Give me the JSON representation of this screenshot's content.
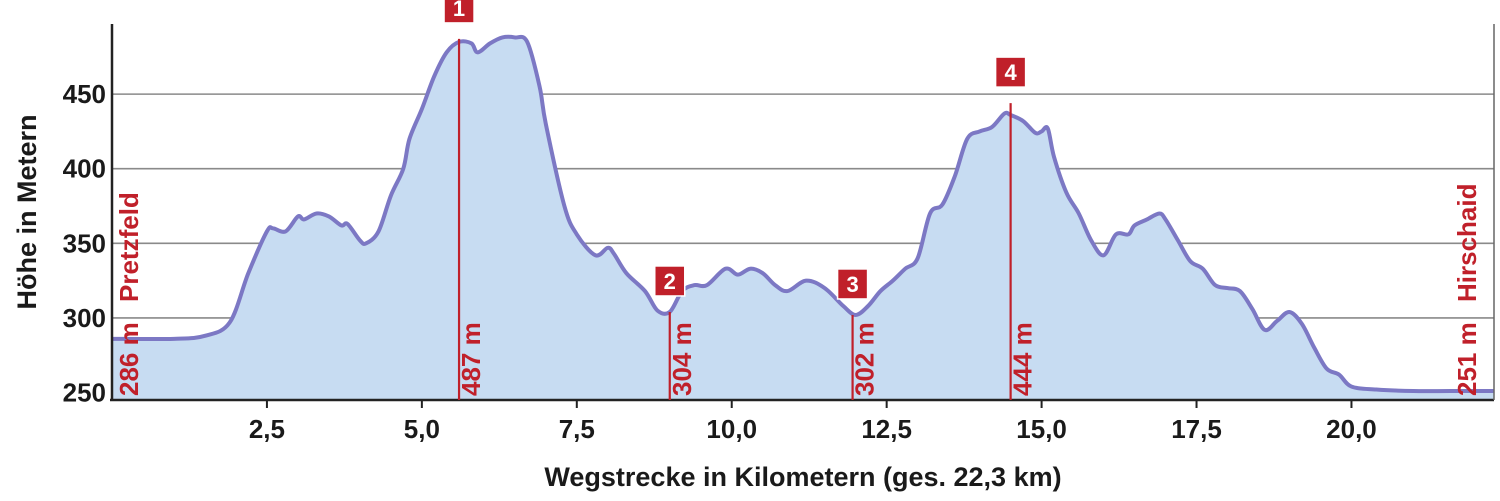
{
  "chart_data": {
    "type": "area",
    "xlabel": "Wegstrecke in Kilometern (ges. 22,3 km)",
    "ylabel": "Höhe in Metern",
    "xlim": [
      0,
      22.3
    ],
    "ylim": [
      245,
      497
    ],
    "x_ticks": [
      {
        "value": 2.5,
        "label": "2,5"
      },
      {
        "value": 5.0,
        "label": "5,0"
      },
      {
        "value": 7.5,
        "label": "7,5"
      },
      {
        "value": 10.0,
        "label": "10,0"
      },
      {
        "value": 12.5,
        "label": "12,5"
      },
      {
        "value": 15.0,
        "label": "15,0"
      },
      {
        "value": 17.5,
        "label": "17,5"
      },
      {
        "value": 20.0,
        "label": "20,0"
      }
    ],
    "y_ticks": [
      {
        "value": 250,
        "label": "250"
      },
      {
        "value": 300,
        "label": "300"
      },
      {
        "value": 350,
        "label": "350"
      },
      {
        "value": 400,
        "label": "400"
      },
      {
        "value": 450,
        "label": "450"
      }
    ],
    "grid": true,
    "colors": {
      "fill": "#c7dcf2",
      "line": "#7c78c4",
      "marker": "#c0202a",
      "grid": "#8a8a8a",
      "axis": "#222222"
    },
    "x": [
      0,
      1.0,
      1.5,
      1.9,
      2.2,
      2.5,
      2.6,
      2.8,
      3.0,
      3.1,
      3.3,
      3.5,
      3.7,
      3.8,
      4.0,
      4.1,
      4.3,
      4.5,
      4.7,
      4.8,
      5.0,
      5.2,
      5.4,
      5.6,
      5.8,
      5.9,
      6.1,
      6.3,
      6.5,
      6.7,
      6.9,
      7.0,
      7.3,
      7.5,
      7.8,
      8.0,
      8.1,
      8.3,
      8.6,
      8.8,
      9.0,
      9.2,
      9.4,
      9.6,
      9.9,
      10.1,
      10.3,
      10.5,
      10.7,
      10.9,
      11.2,
      11.5,
      11.8,
      12.0,
      12.2,
      12.4,
      12.6,
      12.8,
      13.0,
      13.2,
      13.4,
      13.6,
      13.8,
      14.0,
      14.2,
      14.4,
      14.5,
      14.7,
      14.9,
      15.0,
      15.1,
      15.2,
      15.4,
      15.6,
      15.8,
      16.0,
      16.2,
      16.4,
      16.5,
      16.7,
      16.9,
      17.0,
      17.2,
      17.4,
      17.6,
      17.8,
      18.0,
      18.2,
      18.4,
      18.6,
      18.8,
      19.0,
      19.2,
      19.4,
      19.6,
      19.8,
      20.0,
      20.4,
      21.0,
      21.6,
      22.3
    ],
    "values": [
      286,
      286,
      288,
      297,
      330,
      358,
      360,
      358,
      368,
      366,
      370,
      368,
      362,
      363,
      352,
      350,
      358,
      382,
      400,
      420,
      440,
      462,
      478,
      485,
      484,
      478,
      484,
      488,
      488,
      485,
      455,
      430,
      375,
      356,
      342,
      347,
      343,
      330,
      318,
      305,
      304,
      318,
      322,
      322,
      333,
      329,
      333,
      330,
      322,
      318,
      325,
      320,
      308,
      302,
      308,
      318,
      325,
      333,
      340,
      370,
      376,
      395,
      420,
      425,
      428,
      437,
      436,
      432,
      424,
      425,
      427,
      408,
      384,
      370,
      352,
      342,
      356,
      356,
      362,
      366,
      370,
      366,
      352,
      338,
      333,
      322,
      320,
      318,
      306,
      292,
      298,
      304,
      296,
      280,
      266,
      262,
      254,
      252,
      251,
      251,
      251
    ],
    "markers": [
      {
        "num": "1",
        "x": 5.6,
        "y": 487,
        "label": "487 m"
      },
      {
        "num": "2",
        "x": 9.0,
        "y": 304,
        "label": "304 m"
      },
      {
        "num": "3",
        "x": 11.95,
        "y": 302,
        "label": "302 m"
      },
      {
        "num": "4",
        "x": 14.5,
        "y": 444,
        "label": "444 m"
      }
    ],
    "start": {
      "name": "Pretzfeld",
      "label": "286 m"
    },
    "end": {
      "name": "Hirschaid",
      "label": "251 m"
    }
  }
}
